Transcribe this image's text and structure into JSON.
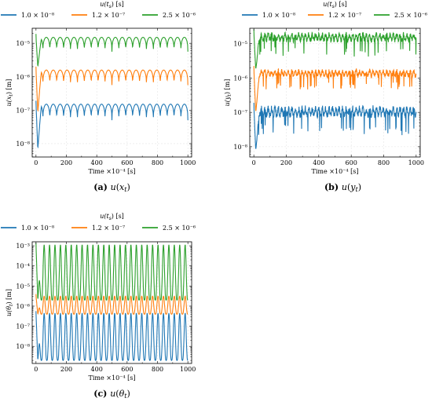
{
  "colors": {
    "series_1": "#1f77b4",
    "series_2": "#ff7f0e",
    "series_3": "#2ca02c"
  },
  "legend_title_prefix": "u(t",
  "legend_title_suffix": ") [s]",
  "legend_entries": [
    "1.0 × 10⁻⁸",
    "1.2 × 10⁻⁷",
    "2.5 × 10⁻⁶"
  ],
  "chart_data": [
    {
      "id": "a",
      "type": "line",
      "caption_label": "(a)",
      "caption_var": "x",
      "ylabel_var": "x",
      "ylabel_unit": "[m]",
      "xlabel": "Time ×10⁻⁴ [s]",
      "x_ticks": [
        0,
        200,
        400,
        600,
        800,
        1000
      ],
      "y_scale": "log",
      "y_ticks": [
        -8,
        -7,
        -6,
        -5
      ],
      "xlim": [
        -25,
        1025
      ],
      "ylim_log10": [
        -8.4,
        -4.55
      ],
      "grid": true,
      "legend_position": "top",
      "series": [
        {
          "name": "1.0 × 10⁻⁸",
          "log10_min": -7.3,
          "log10_max": -6.82,
          "initial_dip": -8.15,
          "spikes": 22
        },
        {
          "name": "1.2 × 10⁻⁷",
          "log10_min": -6.25,
          "log10_max": -5.8,
          "initial_dip": -7.05,
          "spikes": 22
        },
        {
          "name": "2.5 × 10⁻⁶",
          "log10_min": -5.25,
          "log10_max": -4.82,
          "initial_dip": -5.7,
          "spikes": 22
        }
      ]
    },
    {
      "id": "b",
      "type": "line",
      "caption_label": "(b)",
      "caption_var": "y",
      "ylabel_var": "y",
      "ylabel_unit": "[m]",
      "xlabel": "Time ×10⁻⁴ [s]",
      "x_ticks": [
        0,
        200,
        400,
        600,
        800,
        1000
      ],
      "y_scale": "log",
      "y_ticks": [
        -8,
        -7,
        -6,
        -5
      ],
      "xlim": [
        -25,
        1025
      ],
      "ylim_log10": [
        -8.3,
        -4.55
      ],
      "grid": true,
      "legend_position": "top",
      "series": [
        {
          "name": "1.0 × 10⁻⁸",
          "log10_min": -7.15,
          "log10_max": -6.82,
          "initial_dip": -8.1,
          "spikes": 48
        },
        {
          "name": "1.2 × 10⁻⁷",
          "log10_min": -5.98,
          "log10_max": -5.75,
          "initial_dip": -7.0,
          "spikes": 48
        },
        {
          "name": "2.5 × 10⁻⁶",
          "log10_min": -4.95,
          "log10_max": -4.68,
          "initial_dip": -5.75,
          "spikes": 48
        }
      ]
    },
    {
      "id": "c",
      "type": "line",
      "caption_label": "(c)",
      "caption_var": "θ",
      "ylabel_var": "θ",
      "ylabel_unit": "[m]",
      "xlabel": "Time ×10⁻⁴ [s]",
      "x_ticks": [
        0,
        200,
        400,
        600,
        800,
        1000
      ],
      "y_scale": "log",
      "y_ticks": [
        -8,
        -7,
        -6,
        -5,
        -4,
        -3
      ],
      "xlim": [
        -25,
        1025
      ],
      "ylim_log10": [
        -8.85,
        -2.8
      ],
      "grid": true,
      "legend_position": "top",
      "series": [
        {
          "name": "1.0 × 10⁻⁸",
          "log10_min": -8.7,
          "log10_max": -6.35,
          "initial_dip": -8.7,
          "spikes": 28
        },
        {
          "name": "1.2 × 10⁻⁷",
          "log10_min": -6.4,
          "log10_max": -5.5,
          "initial_dip": -6.4,
          "spikes": 28
        },
        {
          "name": "2.5 × 10⁻⁶",
          "log10_min": -5.7,
          "log10_max": -2.95,
          "initial_dip": -5.7,
          "spikes": 28
        }
      ]
    }
  ]
}
